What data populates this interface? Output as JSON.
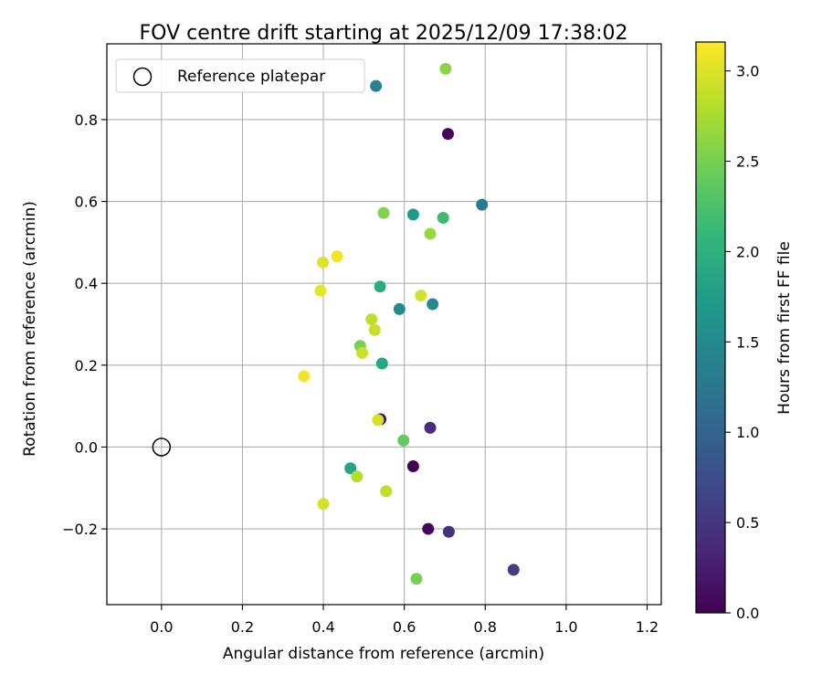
{
  "chart_data": {
    "type": "scatter",
    "title": "FOV centre drift starting at 2025/12/09 17:38:02",
    "xlabel": "Angular distance from reference (arcmin)",
    "ylabel": "Rotation from reference (arcmin)",
    "xlim": [
      -0.135,
      1.235
    ],
    "ylim": [
      -0.385,
      0.985
    ],
    "xticks": [
      0.0,
      0.2,
      0.4,
      0.6,
      0.8,
      1.0,
      1.2
    ],
    "xtick_labels": [
      "0.0",
      "0.2",
      "0.4",
      "0.6",
      "0.8",
      "1.0",
      "1.2"
    ],
    "yticks": [
      -0.2,
      0.0,
      0.2,
      0.4,
      0.6,
      0.8
    ],
    "ytick_labels": [
      "−0.2",
      "0.0",
      "0.2",
      "0.4",
      "0.6",
      "0.8"
    ],
    "grid": true,
    "legend": {
      "position": "top-left",
      "entries": [
        "Reference platepar"
      ]
    },
    "reference_point": {
      "x": 0.0,
      "y": 0.0
    },
    "colorbar": {
      "label": "Hours from first FF file",
      "range": [
        0.0,
        3.16
      ],
      "ticks": [
        0.0,
        0.5,
        1.0,
        1.5,
        2.0,
        2.5,
        3.0
      ],
      "tick_labels": [
        "0.0",
        "0.5",
        "1.0",
        "1.5",
        "2.0",
        "2.5",
        "3.0"
      ],
      "colormap": "viridis",
      "colormap_stops": [
        "#440154",
        "#482878",
        "#3e4989",
        "#31688e",
        "#26828e",
        "#1f9e89",
        "#35b779",
        "#6ece58",
        "#b5de2b",
        "#fde725"
      ]
    },
    "points": [
      {
        "x": 0.708,
        "y": 0.765,
        "t": 0.05
      },
      {
        "x": 0.622,
        "y": -0.047,
        "t": 0.0
      },
      {
        "x": 0.659,
        "y": -0.2,
        "t": 0.05
      },
      {
        "x": 0.541,
        "y": 0.068,
        "t": 0.1
      },
      {
        "x": 0.664,
        "y": 0.047,
        "t": 0.4
      },
      {
        "x": 0.71,
        "y": -0.207,
        "t": 0.45
      },
      {
        "x": 0.87,
        "y": -0.3,
        "t": 0.6
      },
      {
        "x": 0.792,
        "y": 0.592,
        "t": 1.3
      },
      {
        "x": 0.53,
        "y": 0.882,
        "t": 1.4
      },
      {
        "x": 0.588,
        "y": 0.337,
        "t": 1.5
      },
      {
        "x": 0.67,
        "y": 0.349,
        "t": 1.5
      },
      {
        "x": 0.622,
        "y": 0.568,
        "t": 1.7
      },
      {
        "x": 0.467,
        "y": -0.052,
        "t": 1.85
      },
      {
        "x": 0.545,
        "y": 0.204,
        "t": 1.9
      },
      {
        "x": 0.54,
        "y": 0.392,
        "t": 1.95
      },
      {
        "x": 0.696,
        "y": 0.56,
        "t": 2.15
      },
      {
        "x": 0.598,
        "y": 0.016,
        "t": 2.4
      },
      {
        "x": 0.63,
        "y": -0.322,
        "t": 2.5
      },
      {
        "x": 0.491,
        "y": 0.247,
        "t": 2.5
      },
      {
        "x": 0.549,
        "y": 0.572,
        "t": 2.55
      },
      {
        "x": 0.702,
        "y": 0.924,
        "t": 2.6
      },
      {
        "x": 0.664,
        "y": 0.521,
        "t": 2.65
      },
      {
        "x": 0.483,
        "y": -0.072,
        "t": 2.8
      },
      {
        "x": 0.555,
        "y": -0.108,
        "t": 2.85
      },
      {
        "x": 0.519,
        "y": 0.312,
        "t": 2.85
      },
      {
        "x": 0.527,
        "y": 0.286,
        "t": 2.9
      },
      {
        "x": 0.641,
        "y": 0.37,
        "t": 2.95
      },
      {
        "x": 0.496,
        "y": 0.23,
        "t": 2.9
      },
      {
        "x": 0.4,
        "y": -0.139,
        "t": 2.95
      },
      {
        "x": 0.535,
        "y": 0.066,
        "t": 2.95
      },
      {
        "x": 0.399,
        "y": 0.451,
        "t": 3.0
      },
      {
        "x": 0.393,
        "y": 0.382,
        "t": 3.05
      },
      {
        "x": 0.434,
        "y": 0.466,
        "t": 3.1
      },
      {
        "x": 0.352,
        "y": 0.173,
        "t": 3.1
      }
    ]
  }
}
